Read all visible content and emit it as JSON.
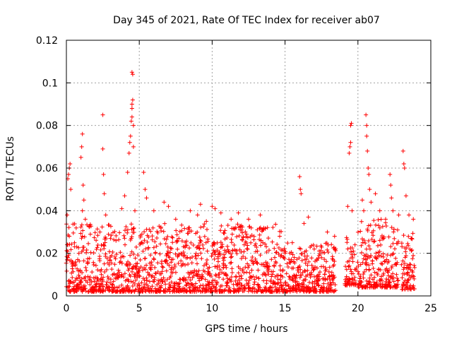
{
  "chart_data": {
    "type": "scatter",
    "title": "Day 345 of 2021, Rate Of TEC Index for receiver ab07",
    "xlabel": "GPS time / hours",
    "ylabel": "ROTI / TECUs",
    "xlim": [
      0,
      25
    ],
    "ylim": [
      0,
      0.12
    ],
    "x_ticks": [
      0,
      5,
      10,
      15,
      20,
      25
    ],
    "x_tick_labels": [
      "0",
      "5",
      "10",
      "15",
      "20",
      "25"
    ],
    "y_ticks": [
      0,
      0.02,
      0.04,
      0.06,
      0.08,
      0.1,
      0.12
    ],
    "y_tick_labels": [
      "0",
      "0.02",
      "0.04",
      "0.06",
      "0.08",
      "0.1",
      "0.12"
    ],
    "grid": true,
    "marker": "+",
    "color": "#ff0000",
    "series": [
      {
        "points": [
          [
            0.05,
            0.038
          ],
          [
            0.1,
            0.055
          ],
          [
            0.15,
            0.057
          ],
          [
            0.2,
            0.06
          ],
          [
            0.25,
            0.062
          ],
          [
            0.3,
            0.05
          ],
          [
            0.1,
            0.024
          ],
          [
            0.2,
            0.028
          ],
          [
            1.0,
            0.065
          ],
          [
            1.05,
            0.07
          ],
          [
            1.1,
            0.076
          ],
          [
            1.15,
            0.052
          ],
          [
            1.2,
            0.045
          ],
          [
            1.1,
            0.04
          ],
          [
            1.3,
            0.036
          ],
          [
            2.5,
            0.085
          ],
          [
            2.5,
            0.069
          ],
          [
            2.55,
            0.057
          ],
          [
            2.6,
            0.048
          ],
          [
            2.3,
            0.03
          ],
          [
            2.7,
            0.038
          ],
          [
            3.8,
            0.041
          ],
          [
            4.0,
            0.047
          ],
          [
            4.2,
            0.058
          ],
          [
            4.3,
            0.067
          ],
          [
            4.35,
            0.072
          ],
          [
            4.4,
            0.075
          ],
          [
            4.45,
            0.082
          ],
          [
            4.5,
            0.084
          ],
          [
            4.5,
            0.088
          ],
          [
            4.5,
            0.09
          ],
          [
            4.55,
            0.092
          ],
          [
            4.55,
            0.104
          ],
          [
            4.5,
            0.105
          ],
          [
            4.6,
            0.08
          ],
          [
            4.6,
            0.07
          ],
          [
            4.7,
            0.04
          ],
          [
            5.3,
            0.058
          ],
          [
            5.4,
            0.05
          ],
          [
            5.5,
            0.046
          ],
          [
            6.0,
            0.04
          ],
          [
            6.7,
            0.044
          ],
          [
            7.0,
            0.042
          ],
          [
            7.5,
            0.036
          ],
          [
            8.5,
            0.04
          ],
          [
            9.0,
            0.038
          ],
          [
            9.2,
            0.043
          ],
          [
            9.6,
            0.035
          ],
          [
            10.0,
            0.042
          ],
          [
            10.2,
            0.041
          ],
          [
            10.6,
            0.039
          ],
          [
            11.3,
            0.036
          ],
          [
            11.8,
            0.039
          ],
          [
            12.5,
            0.036
          ],
          [
            13.3,
            0.038
          ],
          [
            15.0,
            0.02
          ],
          [
            15.5,
            0.025
          ],
          [
            16.0,
            0.056
          ],
          [
            16.05,
            0.05
          ],
          [
            16.1,
            0.048
          ],
          [
            16.3,
            0.034
          ],
          [
            16.6,
            0.037
          ],
          [
            17.0,
            0.022
          ],
          [
            17.5,
            0.018
          ],
          [
            17.9,
            0.03
          ],
          [
            18.4,
            0.028
          ],
          [
            19.3,
            0.042
          ],
          [
            19.4,
            0.067
          ],
          [
            19.45,
            0.07
          ],
          [
            19.5,
            0.072
          ],
          [
            19.5,
            0.08
          ],
          [
            19.55,
            0.081
          ],
          [
            19.6,
            0.04
          ],
          [
            19.8,
            0.024
          ],
          [
            20.3,
            0.045
          ],
          [
            20.4,
            0.04
          ],
          [
            20.55,
            0.085
          ],
          [
            20.6,
            0.08
          ],
          [
            20.6,
            0.075
          ],
          [
            20.65,
            0.068
          ],
          [
            20.7,
            0.06
          ],
          [
            20.75,
            0.057
          ],
          [
            20.8,
            0.05
          ],
          [
            20.9,
            0.044
          ],
          [
            21.2,
            0.048
          ],
          [
            21.5,
            0.04
          ],
          [
            21.9,
            0.036
          ],
          [
            22.2,
            0.057
          ],
          [
            22.25,
            0.052
          ],
          [
            22.3,
            0.046
          ],
          [
            22.4,
            0.04
          ],
          [
            22.8,
            0.038
          ],
          [
            23.1,
            0.068
          ],
          [
            23.15,
            0.062
          ],
          [
            23.2,
            0.06
          ],
          [
            23.3,
            0.047
          ],
          [
            23.5,
            0.038
          ],
          [
            23.8,
            0.036
          ]
        ],
        "dense_ranges": [
          {
            "x_start": 0.0,
            "x_end": 14.8,
            "y_min": 0.002,
            "y_max": 0.034
          },
          {
            "x_start": 14.8,
            "x_end": 18.5,
            "y_min": 0.002,
            "y_max": 0.025
          },
          {
            "x_start": 19.1,
            "x_end": 19.9,
            "y_min": 0.005,
            "y_max": 0.03
          },
          {
            "x_start": 20.0,
            "x_end": 22.8,
            "y_min": 0.004,
            "y_max": 0.036
          },
          {
            "x_start": 23.0,
            "x_end": 23.9,
            "y_min": 0.003,
            "y_max": 0.03
          }
        ]
      }
    ]
  }
}
